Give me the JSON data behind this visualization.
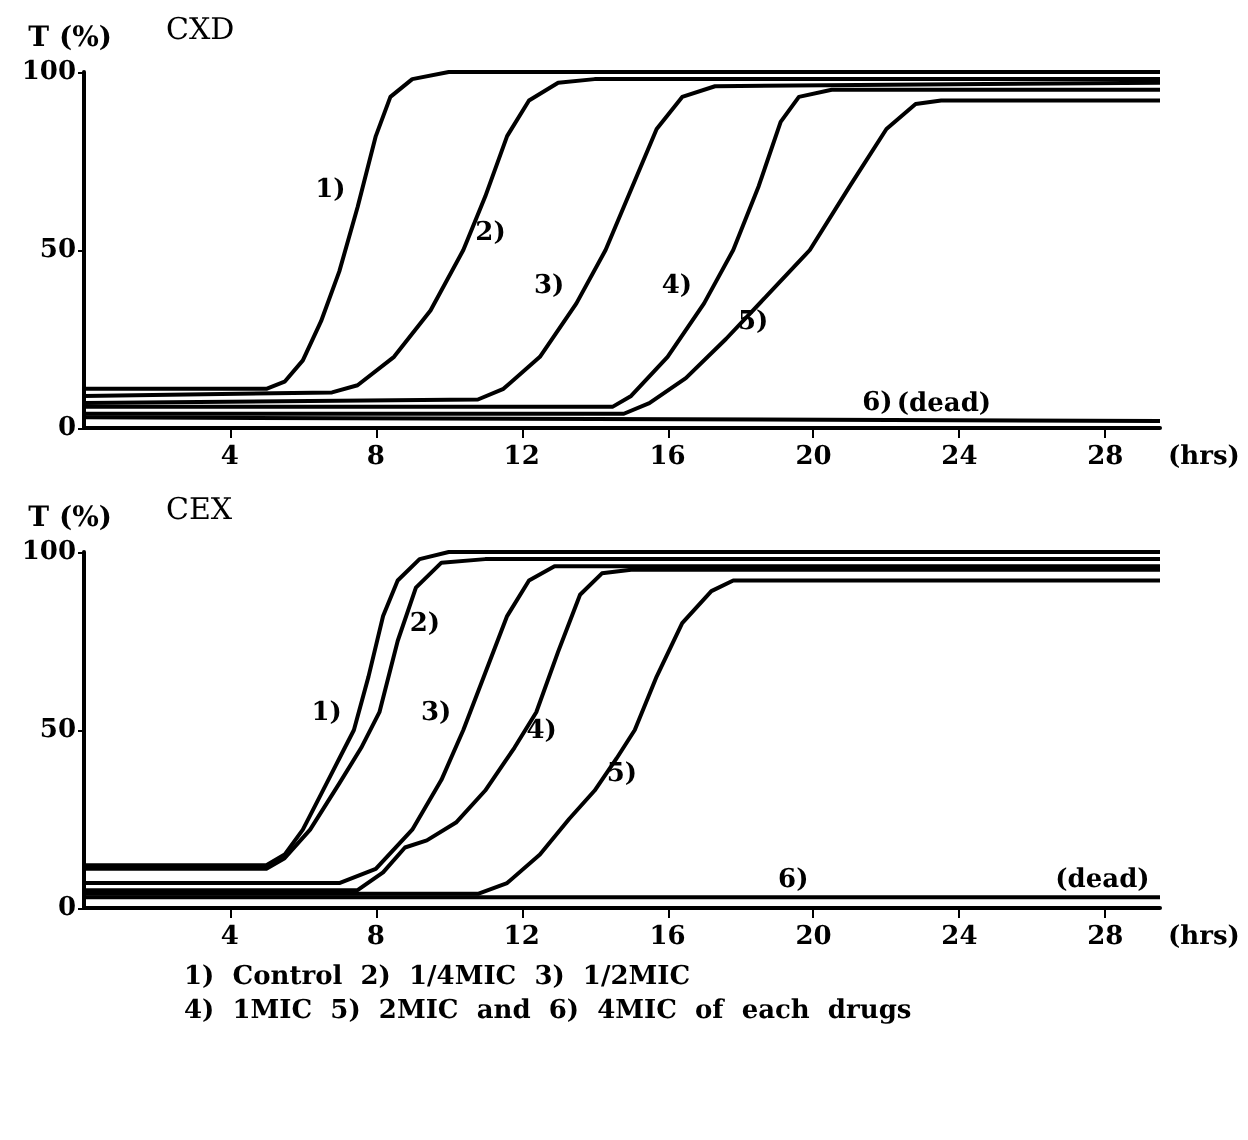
{
  "chart_data": [
    {
      "type": "line",
      "title": "CXD",
      "ylabel": "T (%)",
      "xlabel": "(hrs)",
      "xlim": [
        0,
        29.5
      ],
      "xticks": [
        4,
        8,
        12,
        16,
        20,
        24,
        28
      ],
      "ylim": [
        0,
        100
      ],
      "yticks": [
        0,
        50,
        100
      ],
      "grid": false,
      "marker": "none",
      "line_style": "solid",
      "series": [
        {
          "color": "#000000",
          "x": [
            0,
            5,
            5.5,
            6,
            6.5,
            7,
            7.5,
            8,
            8.4,
            9,
            10,
            29.5
          ],
          "values": [
            11,
            11,
            13,
            19,
            30,
            44,
            62,
            82,
            93,
            98,
            100,
            100
          ]
        },
        {
          "color": "#000000",
          "x": [
            0,
            6.8,
            7.5,
            8.5,
            9.5,
            10.4,
            11,
            11.6,
            12.2,
            13,
            14,
            29.5
          ],
          "values": [
            9,
            10,
            12,
            20,
            33,
            50,
            65,
            82,
            92,
            97,
            98,
            98
          ]
        },
        {
          "color": "#000000",
          "x": [
            0,
            10.8,
            11.5,
            12.5,
            13.5,
            14.3,
            15,
            15.7,
            16.4,
            17.3,
            29.5
          ],
          "values": [
            7,
            8,
            11,
            20,
            35,
            50,
            67,
            84,
            93,
            96,
            97
          ]
        },
        {
          "color": "#000000",
          "x": [
            0,
            14.5,
            15,
            16,
            17,
            17.8,
            18.5,
            19.1,
            19.6,
            20.5,
            29.5
          ],
          "values": [
            6,
            6,
            9,
            20,
            35,
            50,
            68,
            86,
            93,
            95,
            95
          ]
        },
        {
          "color": "#000000",
          "x": [
            0,
            14.8,
            15.5,
            16.5,
            17.6,
            18.8,
            19.9,
            21,
            22,
            22.8,
            23.5,
            29.5
          ],
          "values": [
            4,
            4,
            7,
            14,
            25,
            38,
            50,
            68,
            84,
            91,
            92,
            92
          ]
        },
        {
          "color": "#000000",
          "x": [
            0,
            29.5
          ],
          "values": [
            3,
            2
          ]
        }
      ],
      "annotations": [
        {
          "text": "1)",
          "x": 7.5,
          "y": 62
        },
        {
          "text": "2)",
          "x": 10.4,
          "y": 50
        },
        {
          "text": "3)",
          "x": 13.5,
          "y": 35
        },
        {
          "text": "4)",
          "x": 17,
          "y": 35
        },
        {
          "text": "5)",
          "x": 17.6,
          "y": 25
        },
        {
          "text": "6)",
          "x": 22.5,
          "y": 2.2
        },
        {
          "text": "(dead)",
          "x": 25.2,
          "y": 2.1
        }
      ]
    },
    {
      "type": "line",
      "title": "CEX",
      "ylabel": "T (%)",
      "xlabel": "(hrs)",
      "xlim": [
        0,
        29.5
      ],
      "xticks": [
        4,
        8,
        12,
        16,
        20,
        24,
        28
      ],
      "ylim": [
        0,
        100
      ],
      "yticks": [
        0,
        50,
        100
      ],
      "grid": false,
      "marker": "none",
      "line_style": "solid",
      "series": [
        {
          "color": "#000000",
          "x": [
            0,
            5,
            5.5,
            6,
            6.5,
            7,
            7.4,
            7.8,
            8.2,
            8.6,
            9.2,
            10,
            29.5
          ],
          "values": [
            12,
            12,
            15,
            22,
            32,
            42,
            50,
            65,
            82,
            92,
            98,
            100,
            100
          ]
        },
        {
          "color": "#000000",
          "x": [
            0,
            5,
            5.5,
            6.2,
            7,
            7.6,
            8.1,
            8.6,
            9.1,
            9.8,
            11,
            29.5
          ],
          "values": [
            11,
            11,
            14,
            22,
            35,
            45,
            55,
            75,
            90,
            97,
            98,
            98
          ]
        },
        {
          "color": "#000000",
          "x": [
            0,
            7,
            8,
            9,
            9.8,
            10.4,
            11,
            11.6,
            12.2,
            12.9,
            29.5
          ],
          "values": [
            7,
            7,
            11,
            22,
            36,
            50,
            66,
            82,
            92,
            96,
            96
          ]
        },
        {
          "color": "#000000",
          "x": [
            0,
            7.5,
            8.2,
            8.8,
            9.4,
            10.2,
            11,
            11.8,
            12.4,
            13,
            13.6,
            14.2,
            15,
            29.5
          ],
          "values": [
            5,
            5,
            10,
            17,
            19,
            24,
            33,
            45,
            55,
            72,
            88,
            94,
            95,
            95
          ]
        },
        {
          "color": "#000000",
          "x": [
            0,
            10.8,
            11.6,
            12.5,
            13.3,
            14,
            14.6,
            15.1,
            15.7,
            16.4,
            17.2,
            17.8,
            29.5
          ],
          "values": [
            4,
            4,
            7,
            15,
            25,
            33,
            42,
            50,
            65,
            80,
            89,
            92,
            92
          ]
        },
        {
          "color": "#000000",
          "x": [
            0,
            29.5
          ],
          "values": [
            3,
            3
          ]
        }
      ],
      "annotations": [
        {
          "text": "1)",
          "x": 7.4,
          "y": 50
        },
        {
          "text": "2)",
          "x": 8.6,
          "y": 75
        },
        {
          "text": "3)",
          "x": 10.4,
          "y": 50
        },
        {
          "text": "4)",
          "x": 11.8,
          "y": 45
        },
        {
          "text": "5)",
          "x": 14,
          "y": 33
        },
        {
          "text": "6)",
          "x": 18.7,
          "y": 3
        },
        {
          "text": "(dead)",
          "x": 26.3,
          "y": 3
        },
        "1)  Control  2)  1/4MIC  3)  1/2MIC",
        "4)  1MIC  5)  2MIC  and  6)  4MIC  of  each  drugs"
      ]
    }
  ]
}
